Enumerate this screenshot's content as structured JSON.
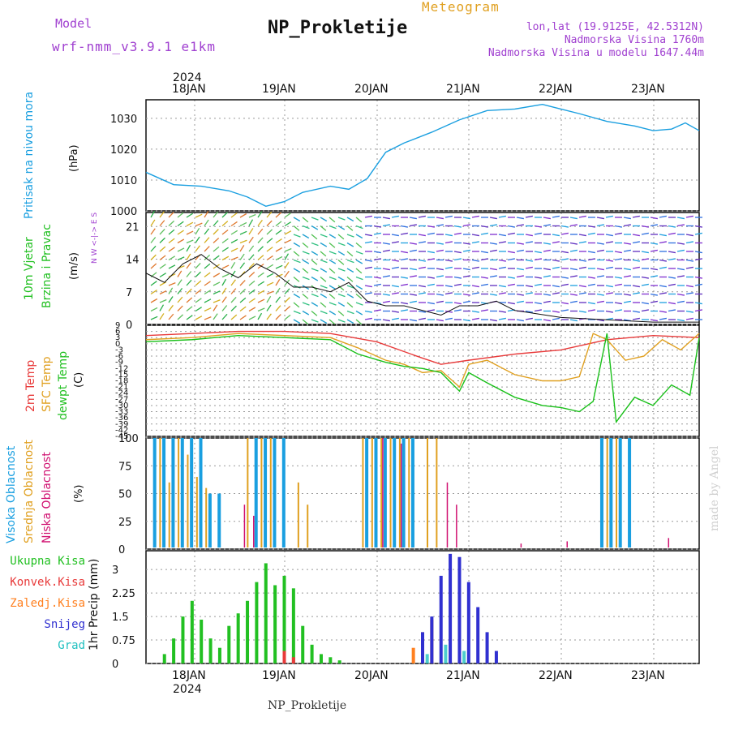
{
  "header": {
    "model_label": "Model",
    "model_name": "wrf-nmm_v3.9.1 e1km",
    "title": "NP_Prokletije",
    "subtitle": "Meteogram",
    "lonlat": "lon,lat (19.9125E, 42.5312N)",
    "elevation": "Nadmorska Visina 1760m",
    "model_elevation": "Nadmorska Visina u modelu 1647.44m",
    "footer_station": "NP_Prokletije",
    "credit": "made by Angel"
  },
  "colors": {
    "pressure": "#1a9fe0",
    "temp2m": "#e83a3a",
    "sfc": "#e0a020",
    "dewpt": "#19c019",
    "high_cloud": "#1a9fe0",
    "mid_cloud": "#e0a020",
    "low_cloud": "#d01070",
    "total_precip": "#22c022",
    "conv_precip": "#e83a3a",
    "freezing": "#ff8020",
    "snow": "#3030d0",
    "graupel": "#20c0c0",
    "purple_text": "#a040d0",
    "orange_text": "#e0a020"
  },
  "chart_data": [
    {
      "name": "pressure",
      "type": "line",
      "ylabel_1": "Pritisak na nivou mora",
      "ylabel_unit": "(hPa)",
      "ylim": [
        1000,
        1036
      ],
      "yticks": [
        "1000",
        "1010",
        "1020",
        "1030"
      ],
      "x_top_year": "2024",
      "x_categories": [
        "18JAN",
        "19JAN",
        "20JAN",
        "21JAN",
        "22JAN",
        "23JAN"
      ],
      "x_bottom_year": "2024",
      "x_day_range": [
        0,
        6
      ],
      "x": [
        0,
        0.3,
        0.6,
        0.9,
        1.1,
        1.3,
        1.5,
        1.7,
        2.0,
        2.2,
        2.4,
        2.6,
        2.8,
        3.1,
        3.4,
        3.7,
        4.0,
        4.3,
        4.5,
        4.7,
        5.0,
        5.3,
        5.5,
        5.7,
        5.85,
        6.0
      ],
      "values": [
        1012.5,
        1008.5,
        1008.0,
        1006.5,
        1004.5,
        1001.5,
        1003.0,
        1006.0,
        1008.0,
        1007.0,
        1010.5,
        1019.0,
        1022.0,
        1025.5,
        1029.5,
        1032.5,
        1033.0,
        1034.5,
        1033.0,
        1031.5,
        1029.0,
        1027.5,
        1026.0,
        1026.5,
        1028.5,
        1026.0
      ]
    },
    {
      "name": "wind",
      "type": "line",
      "ylabel_1": "10m Vjetar",
      "ylabel_2": "Brzina i Pravac",
      "ylabel_unit": "(m/s)",
      "compass": "N  W <-|-> E  S",
      "ylim": [
        0,
        24
      ],
      "yticks": [
        "0",
        "7",
        "14",
        "21"
      ],
      "x": [
        0,
        0.2,
        0.4,
        0.6,
        0.8,
        1.0,
        1.2,
        1.4,
        1.6,
        1.8,
        2.0,
        2.2,
        2.4,
        2.6,
        2.8,
        3.0,
        3.2,
        3.4,
        3.6,
        3.8,
        4.0,
        4.5,
        5.0,
        5.5,
        6.0
      ],
      "values": [
        11,
        9,
        13,
        15,
        12,
        10,
        13,
        11,
        8,
        8,
        7,
        9,
        5,
        4,
        4,
        3,
        2,
        4,
        4,
        5,
        3,
        1.5,
        1,
        0.5,
        0.5
      ]
    },
    {
      "name": "temperature",
      "type": "line",
      "ylabel_1": "2m Temp",
      "ylabel_2": "SFC Temp",
      "ylabel_3": "dewpt Temp",
      "ylabel_unit": "(C)",
      "ylim": [
        -45,
        9
      ],
      "yticks": [
        "-45",
        "-42",
        "-39",
        "-36",
        "-33",
        "-30",
        "-27",
        "-24",
        "-21",
        "-18",
        "-15",
        "-12",
        "-9",
        "-6",
        "-3",
        "0",
        "3",
        "6",
        "9"
      ],
      "series": [
        {
          "name": "2m Temp",
          "x": [
            0,
            0.5,
            1.0,
            1.5,
            2.0,
            2.5,
            3.0,
            3.2,
            3.5,
            4.0,
            4.5,
            5.0,
            5.5,
            6.0
          ],
          "values": [
            4,
            5,
            6,
            6,
            5,
            1,
            -7,
            -10,
            -8,
            -5,
            -3,
            2,
            4,
            3
          ]
        },
        {
          "name": "SFC Temp",
          "x": [
            0,
            0.5,
            1.0,
            1.5,
            2.0,
            2.3,
            2.6,
            2.8,
            3.0,
            3.2,
            3.4,
            3.5,
            3.7,
            4.0,
            4.3,
            4.5,
            4.7,
            4.85,
            5.0,
            5.2,
            5.4,
            5.6,
            5.8,
            6.0
          ],
          "values": [
            2,
            3,
            5,
            4,
            3,
            -2,
            -8,
            -10,
            -14,
            -13,
            -21,
            -10,
            -8,
            -15,
            -18,
            -18,
            -16,
            5,
            2,
            -8,
            -6,
            2,
            -3,
            5
          ]
        },
        {
          "name": "dewpt Temp",
          "x": [
            0,
            0.5,
            1.0,
            1.5,
            2.0,
            2.3,
            2.6,
            2.8,
            3.0,
            3.2,
            3.4,
            3.5,
            3.7,
            4.0,
            4.3,
            4.5,
            4.7,
            4.85,
            5.0,
            5.1,
            5.3,
            5.5,
            5.7,
            5.9,
            6.0
          ],
          "values": [
            1,
            2,
            4,
            3,
            2,
            -5,
            -9,
            -11,
            -12,
            -14,
            -23,
            -14,
            -19,
            -26,
            -30,
            -31,
            -33,
            -28,
            5,
            -38,
            -26,
            -30,
            -20,
            -25,
            3
          ]
        }
      ]
    },
    {
      "name": "clouds",
      "type": "bar",
      "ylabel_1": "Visoka Oblacnost",
      "ylabel_2": "Srednja Oblacnost",
      "ylabel_3": "Niska Oblacnost",
      "ylabel_unit": "(%)",
      "ylim": [
        0,
        100
      ],
      "yticks": [
        "0",
        "25",
        "50",
        "75",
        "100"
      ],
      "series": [
        {
          "name": "Visoka",
          "x": [
            0.05,
            0.15,
            0.25,
            0.35,
            0.45,
            0.55,
            0.65,
            0.75,
            1.15,
            1.25,
            1.35,
            1.45,
            2.35,
            2.45,
            2.55,
            2.65,
            2.75,
            2.85,
            4.9,
            5.0,
            5.1,
            5.2
          ],
          "values": [
            100,
            100,
            100,
            100,
            100,
            100,
            50,
            50,
            100,
            100,
            100,
            100,
            100,
            100,
            100,
            100,
            100,
            100,
            100,
            100,
            100,
            100
          ]
        },
        {
          "name": "Srednja",
          "x": [
            0.1,
            0.2,
            0.3,
            0.4,
            0.5,
            0.6,
            1.05,
            1.2,
            1.3,
            1.6,
            1.7,
            2.3,
            2.4,
            2.5,
            2.6,
            2.7,
            2.8,
            3.0,
            3.1,
            4.95,
            5.05
          ],
          "values": [
            100,
            60,
            100,
            85,
            65,
            55,
            100,
            100,
            100,
            60,
            40,
            100,
            100,
            100,
            100,
            100,
            100,
            100,
            100,
            100,
            100
          ]
        },
        {
          "name": "Niska",
          "x": [
            1.0,
            1.1,
            2.5,
            2.7,
            3.2,
            3.3,
            4.0,
            4.5,
            5.6
          ],
          "values": [
            40,
            30,
            100,
            95,
            60,
            40,
            5,
            7,
            10
          ]
        }
      ]
    },
    {
      "name": "precipitation",
      "type": "bar",
      "ylabel_1": "1hr Precip (mm)",
      "legend": [
        "Ukupna Kisa",
        "Konvek.Kisa",
        "Zaledj.Kisa",
        "Snijeg",
        "Grad"
      ],
      "ylim": [
        0,
        3.6
      ],
      "yticks": [
        "0",
        "0.75",
        "1.5",
        "2.25",
        "3"
      ],
      "series": [
        {
          "name": "Ukupna Kisa",
          "x": [
            0.2,
            0.3,
            0.4,
            0.5,
            0.6,
            0.7,
            0.8,
            0.9,
            1.0,
            1.1,
            1.2,
            1.3,
            1.4,
            1.5,
            1.6,
            1.7,
            1.8,
            1.9,
            2.0,
            2.1
          ],
          "values": [
            0.3,
            0.8,
            1.5,
            2.0,
            1.4,
            0.8,
            0.5,
            1.2,
            1.6,
            2.0,
            2.6,
            3.2,
            2.5,
            2.8,
            2.4,
            1.2,
            0.6,
            0.3,
            0.2,
            0.1
          ]
        },
        {
          "name": "Konvek.Kisa",
          "x": [
            1.5,
            1.6
          ],
          "values": [
            0.4,
            0.2
          ]
        },
        {
          "name": "Zaledj.Kisa",
          "x": [
            2.9,
            3.0,
            3.1
          ],
          "values": [
            0.5,
            1.0,
            1.4
          ]
        },
        {
          "name": "Snijeg",
          "x": [
            3.0,
            3.1,
            3.2,
            3.3,
            3.4,
            3.5,
            3.6,
            3.7,
            3.8
          ],
          "values": [
            1.0,
            1.5,
            2.8,
            3.5,
            3.4,
            2.6,
            1.8,
            1.0,
            0.4
          ]
        },
        {
          "name": "Grad",
          "x": [
            3.05,
            3.25,
            3.45
          ],
          "values": [
            0.3,
            0.6,
            0.4
          ]
        }
      ]
    }
  ]
}
